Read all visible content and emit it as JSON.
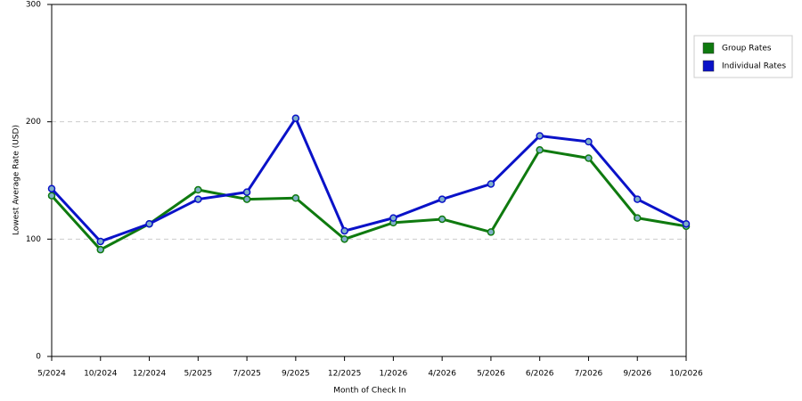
{
  "chart_data": {
    "type": "line",
    "x_label": "Month of Check In",
    "y_label": "Lowest Average Rate (USD)",
    "categories": [
      "5/2024",
      "10/2024",
      "12/2024",
      "5/2025",
      "7/2025",
      "9/2025",
      "12/2025",
      "1/2026",
      "4/2026",
      "5/2026",
      "6/2026",
      "7/2026",
      "9/2026",
      "10/2026"
    ],
    "series": [
      {
        "name": "Group Rates",
        "color": "#0f7a0f",
        "values": [
          137,
          91,
          113,
          142,
          134,
          135,
          100,
          114,
          117,
          106,
          176,
          169,
          118,
          111
        ]
      },
      {
        "name": "Individual Rates",
        "color": "#0a12c8",
        "values": [
          143,
          98,
          113,
          134,
          140,
          203,
          107,
          118,
          134,
          147,
          188,
          183,
          134,
          113
        ]
      }
    ],
    "ylim": [
      0,
      300
    ],
    "yticks": [
      0,
      100,
      200,
      300
    ],
    "grid": true,
    "legend": "right"
  }
}
